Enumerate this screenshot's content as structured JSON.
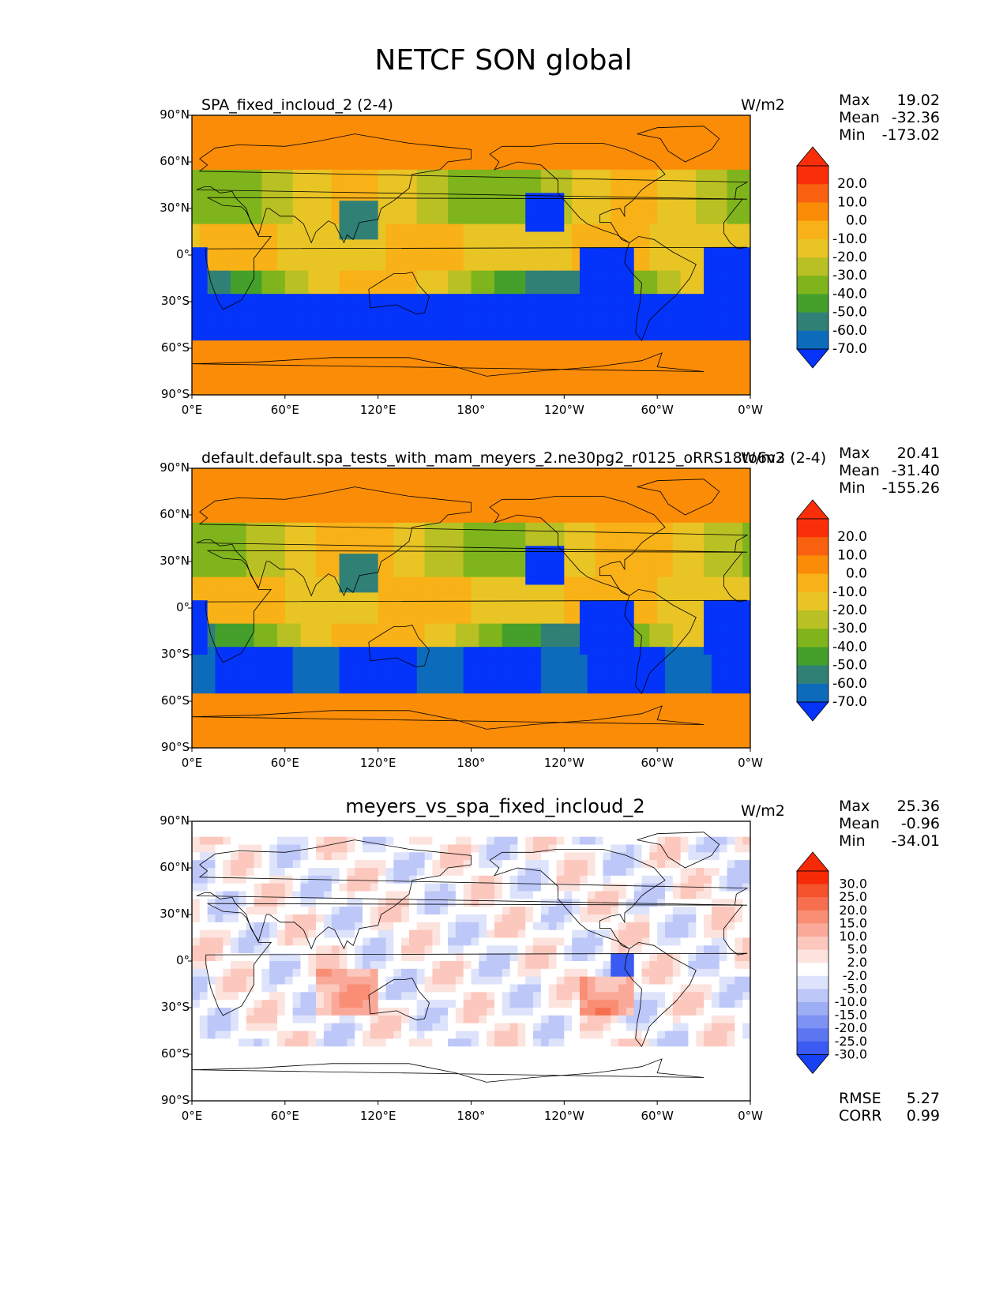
{
  "figure": {
    "title": "NETCF SON global",
    "lat_labels": [
      "90°N",
      "60°N",
      "30°N",
      "0°",
      "30°S",
      "60°S",
      "90°S"
    ],
    "lon_labels": [
      "0°E",
      "60°E",
      "120°E",
      "180°",
      "120°W",
      "60°W",
      "0°W"
    ]
  },
  "panels": [
    {
      "title": "SPA_fixed_incloud_2 (2-4)",
      "units": "W/m2",
      "stats": {
        "max_label": "Max",
        "max": "19.02",
        "mean_label": "Mean",
        "mean": "-32.36",
        "min_label": "Min",
        "min": "-173.02"
      }
    },
    {
      "title": "default.default.spa_tests_with_mam_meyers_2.ne30pg2_r0125_oRRS18to6v3 (2-4)",
      "units": "W/m2",
      "stats": {
        "max_label": "Max",
        "max": "20.41",
        "mean_label": "Mean",
        "mean": "-31.40",
        "min_label": "Min",
        "min": "-155.26"
      }
    },
    {
      "title": "meyers_vs_spa_fixed_incloud_2",
      "units": "W/m2",
      "stats": {
        "max_label": "Max",
        "max": "25.36",
        "mean_label": "Mean",
        "mean": "-0.96",
        "min_label": "Min",
        "min": "-34.01"
      },
      "footer": {
        "rmse_label": "RMSE",
        "rmse": "5.27",
        "corr_label": "CORR",
        "corr": "0.99"
      }
    }
  ],
  "chart_data": [
    {
      "type": "heatmap",
      "title": "SPA_fixed_incloud_2 (2-4)",
      "xlabel": "",
      "ylabel": "",
      "xlim": [
        0,
        360
      ],
      "ylim": [
        -90,
        90
      ],
      "colorbar_ticks": [
        "20.0",
        "10.0",
        "0.0",
        "-10.0",
        "-20.0",
        "-30.0",
        "-40.0",
        "-50.0",
        "-60.0",
        "-70.0"
      ],
      "colorbar_colors": [
        "#fa2f0a",
        "#f86110",
        "#fb8c07",
        "#f8b117",
        "#e8c425",
        "#b9c023",
        "#7fb41c",
        "#44a02a",
        "#318076",
        "#0d6bbb",
        "#0433f9"
      ]
    },
    {
      "type": "heatmap",
      "title": "default.default.spa_tests_with_mam_meyers_2.ne30pg2_r0125_oRRS18to6v3 (2-4)",
      "xlabel": "",
      "ylabel": "",
      "xlim": [
        0,
        360
      ],
      "ylim": [
        -90,
        90
      ],
      "colorbar_ticks": [
        "20.0",
        "10.0",
        "0.0",
        "-10.0",
        "-20.0",
        "-30.0",
        "-40.0",
        "-50.0",
        "-60.0",
        "-70.0"
      ],
      "colorbar_colors": [
        "#fa2f0a",
        "#f86110",
        "#fb8c07",
        "#f8b117",
        "#e8c425",
        "#b9c023",
        "#7fb41c",
        "#44a02a",
        "#318076",
        "#0d6bbb",
        "#0433f9"
      ]
    },
    {
      "type": "heatmap",
      "title": "meyers_vs_spa_fixed_incloud_2",
      "xlabel": "",
      "ylabel": "",
      "xlim": [
        0,
        360
      ],
      "ylim": [
        -90,
        90
      ],
      "colorbar_ticks": [
        "30.0",
        "25.0",
        "20.0",
        "15.0",
        "10.0",
        "5.0",
        "2.0",
        "-2.0",
        "-5.0",
        "-10.0",
        "-15.0",
        "-20.0",
        "-25.0",
        "-30.0"
      ],
      "colorbar_colors": [
        "#f72a07",
        "#f5532c",
        "#f67050",
        "#f98e74",
        "#faa999",
        "#fcc7bc",
        "#fde3dd",
        "#ffffff",
        "#dde3fb",
        "#bdc7f8",
        "#9eaef5",
        "#7d92f3",
        "#5c76f1",
        "#3b5af1",
        "#1741f5"
      ]
    }
  ]
}
